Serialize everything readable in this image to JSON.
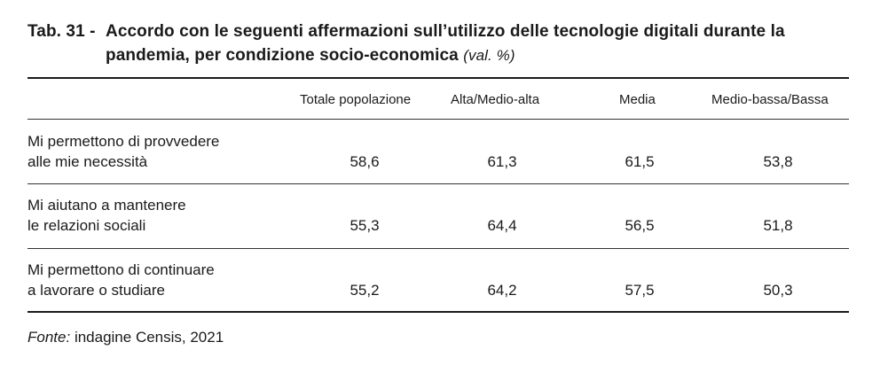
{
  "table": {
    "title_prefix": "Tab. 31 -",
    "title_text": "Accordo con le seguenti affermazioni sull’utilizzo delle tecnologie digitali durante la pandemia, per condizione socio-economica",
    "title_unit": "(val. %)",
    "columns": [
      "Totale popolazione",
      "Alta/Medio-alta",
      "Media",
      "Medio-bassa/Bassa"
    ],
    "rows": [
      {
        "label_line1": "Mi permettono di provvedere",
        "label_line2": "alle mie necessità",
        "values": [
          "58,6",
          "61,3",
          "61,5",
          "53,8"
        ]
      },
      {
        "label_line1": "Mi aiutano a mantenere",
        "label_line2": "le relazioni sociali",
        "values": [
          "55,3",
          "64,4",
          "56,5",
          "51,8"
        ]
      },
      {
        "label_line1": "Mi permettono di continuare",
        "label_line2": "a lavorare o studiare",
        "values": [
          "55,2",
          "64,2",
          "57,5",
          "50,3"
        ]
      }
    ],
    "source_label": "Fonte:",
    "source_text": "indagine Censis, 2021"
  }
}
